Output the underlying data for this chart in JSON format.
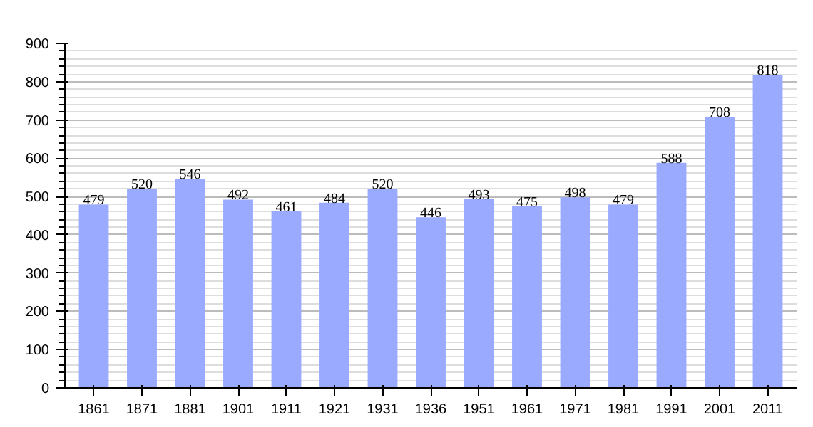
{
  "chart_data": {
    "type": "bar",
    "categories": [
      "1861",
      "1871",
      "1881",
      "1901",
      "1911",
      "1921",
      "1931",
      "1936",
      "1951",
      "1961",
      "1971",
      "1981",
      "1991",
      "2001",
      "2011"
    ],
    "values": [
      479,
      520,
      546,
      492,
      461,
      484,
      520,
      446,
      493,
      475,
      498,
      479,
      588,
      708,
      818
    ],
    "color": "#99aaff",
    "data_labels": true,
    "ylim": [
      0,
      900
    ],
    "yticks": [
      0,
      100,
      200,
      300,
      400,
      500,
      600,
      700,
      800,
      900
    ],
    "grid": "y"
  }
}
